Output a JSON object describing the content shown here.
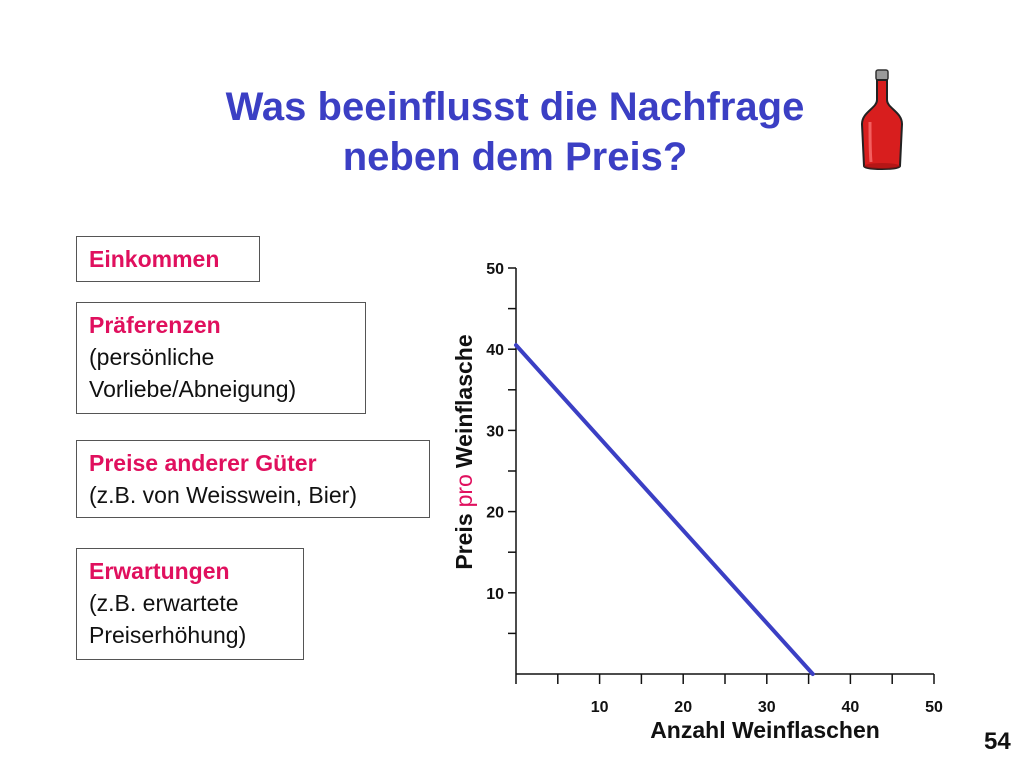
{
  "title": {
    "line1": "Was beeinflusst die Nachfrage",
    "line2": "neben dem Preis?"
  },
  "factors": [
    {
      "head": "Einkommen",
      "sub": []
    },
    {
      "head": "Präferenzen",
      "sub": [
        "(persönliche",
        "Vorliebe/Abneigung)"
      ]
    },
    {
      "head": "Preise anderer Güter",
      "sub": [
        "(z.B. von Weisswein, Bier)"
      ]
    },
    {
      "head": "Erwartungen",
      "sub": [
        "(z.B. erwartete",
        "Preiserhöhung)"
      ]
    }
  ],
  "icons": {
    "bottle": "wine-bottle-icon"
  },
  "colors": {
    "title": "#3b3fc4",
    "highlight": "#e0105e",
    "demand_line": "#3b3fc4",
    "bottle": "#d81e1e"
  },
  "page_number": "54",
  "chart_data": {
    "type": "line",
    "xlabel": "Anzahl Weinflaschen",
    "ylabel": {
      "part1": "Preis",
      "part2": "pro",
      "part3": "Weinflasche"
    },
    "xlim": [
      0,
      50
    ],
    "ylim": [
      0,
      50
    ],
    "x_ticks": [
      10,
      20,
      30,
      40,
      50
    ],
    "y_ticks": [
      10,
      20,
      30,
      40,
      50
    ],
    "minor_tick_step": 5,
    "series": [
      {
        "x": [
          0,
          35.5
        ],
        "y": [
          40.5,
          0
        ]
      }
    ]
  }
}
